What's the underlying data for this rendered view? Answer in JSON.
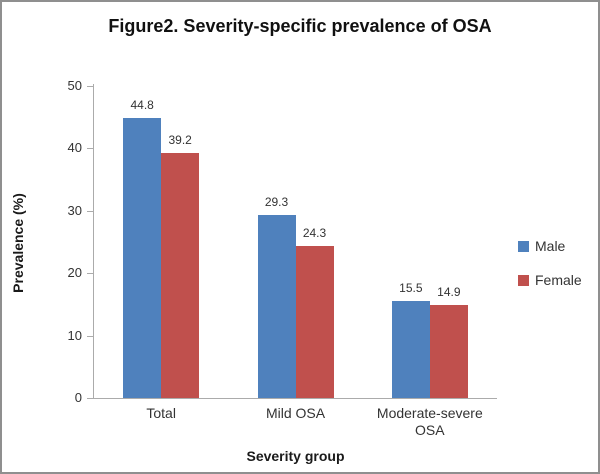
{
  "chart_data": {
    "type": "bar",
    "title": "Figure2. Severity-specific prevalence of OSA",
    "categories": [
      "Total",
      "Mild OSA",
      "Moderate-severe OSA"
    ],
    "series": [
      {
        "name": "Male",
        "color": "#4F81BD",
        "values": [
          44.8,
          29.3,
          15.5
        ]
      },
      {
        "name": "Female",
        "color": "#C0504D",
        "values": [
          39.2,
          24.3,
          14.9
        ]
      }
    ],
    "xlabel": "Severity group",
    "ylabel": "Prevalence (%)",
    "ylim": [
      0,
      50
    ],
    "ytick_step": 10,
    "grid": false,
    "legend_position": "right",
    "data_labels": true,
    "axis_color": "#ABABAB",
    "text_color": "#333333"
  }
}
